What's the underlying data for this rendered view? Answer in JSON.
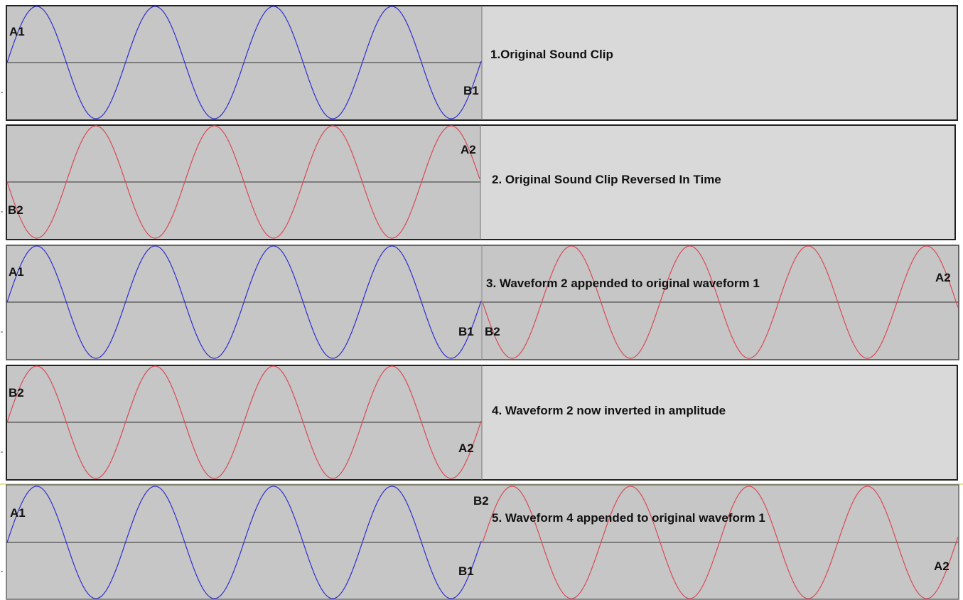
{
  "panels": [
    {
      "caption": "1.Original Sound Clip",
      "waves": [
        {
          "color": "#2f2fd0",
          "phase": "sine",
          "start": "A1",
          "end": "B1"
        }
      ],
      "labels": [
        "A1",
        "B1"
      ]
    },
    {
      "caption": "2.  Original Sound Clip Reversed In Time",
      "waves": [
        {
          "color": "#d94a55",
          "phase": "negative-sine",
          "start": "B2",
          "end": "A2"
        }
      ],
      "labels": [
        "B2",
        "A2"
      ]
    },
    {
      "caption": "3. Waveform 2 appended to original waveform 1",
      "waves": [
        {
          "color": "#2f2fd0",
          "phase": "sine",
          "start": "A1",
          "end": "B1"
        },
        {
          "color": "#d94a55",
          "phase": "negative-sine",
          "start": "B2",
          "end": "A2"
        }
      ],
      "labels": [
        "A1",
        "B1",
        "B2",
        "A2"
      ]
    },
    {
      "caption": "4. Waveform 2 now inverted in amplitude",
      "waves": [
        {
          "color": "#d94a55",
          "phase": "sine",
          "start": "B2",
          "end": "A2"
        }
      ],
      "labels": [
        "B2",
        "A2"
      ]
    },
    {
      "caption": "5. Waveform 4 appended to original waveform 1",
      "waves": [
        {
          "color": "#2f2fd0",
          "phase": "sine",
          "start": "A1",
          "end": "B1"
        },
        {
          "color": "#d94a55",
          "phase": "sine",
          "start": "B2",
          "end": "A2"
        }
      ],
      "labels": [
        "A1",
        "B1",
        "B2",
        "A2"
      ]
    }
  ],
  "colors": {
    "track_bg": "#c6c6c6",
    "caption_bg": "#d9d9d9",
    "frame": "#222222",
    "wave_blue": "#2f2fd0",
    "wave_red": "#d94a55"
  }
}
